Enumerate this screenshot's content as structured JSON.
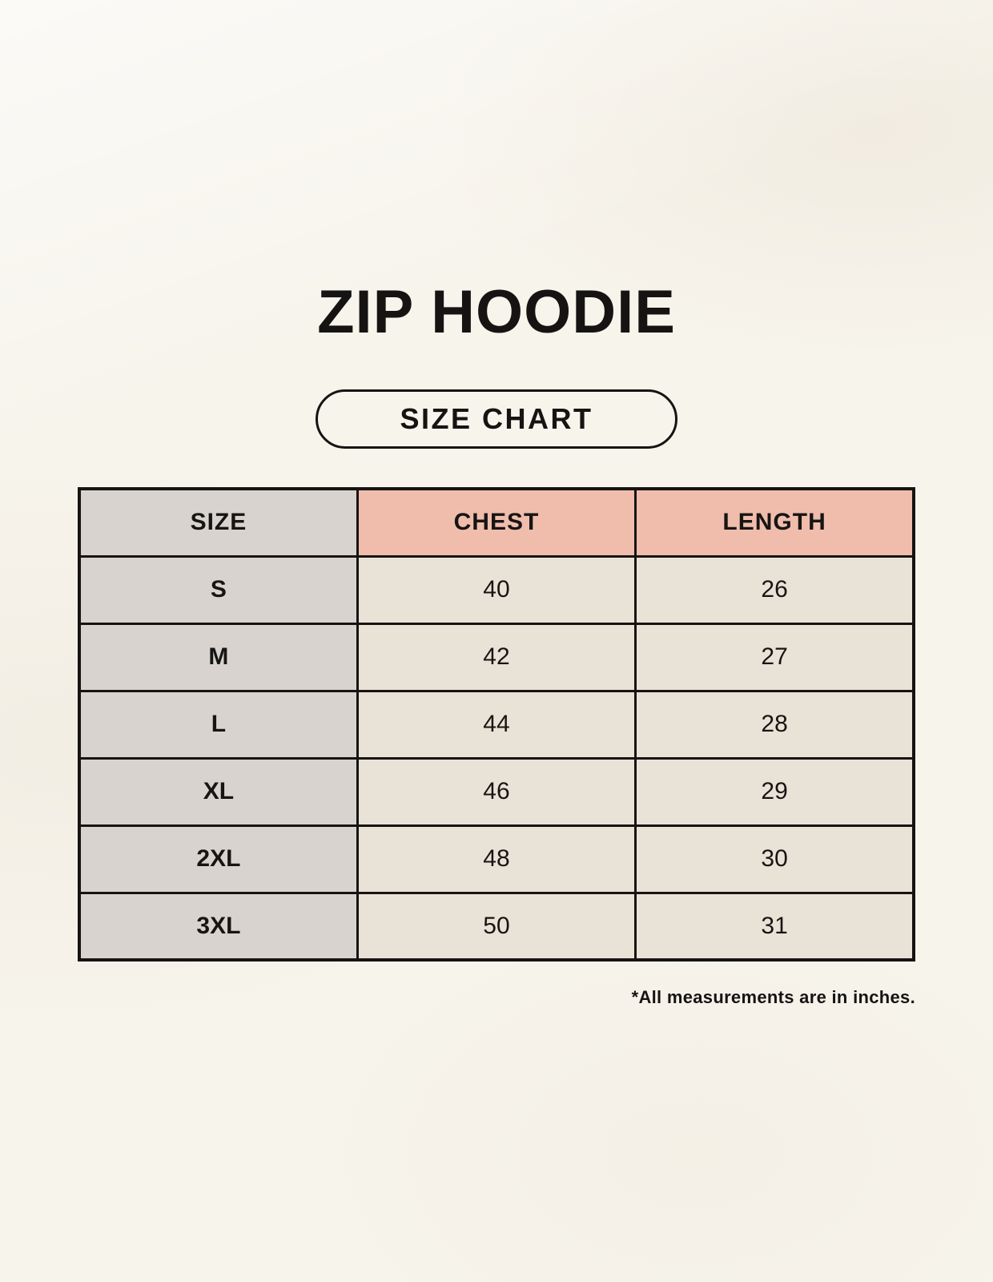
{
  "page": {
    "title": "ZIP HOODIE",
    "badge_label": "SIZE CHART",
    "footnote": "*All measurements are in inches."
  },
  "chart_data": {
    "type": "table",
    "title": "ZIP HOODIE size chart",
    "columns": [
      "SIZE",
      "CHEST",
      "LENGTH"
    ],
    "rows": [
      [
        "S",
        "40",
        "26"
      ],
      [
        "M",
        "42",
        "27"
      ],
      [
        "L",
        "44",
        "28"
      ],
      [
        "XL",
        "46",
        "29"
      ],
      [
        "2XL",
        "48",
        "30"
      ],
      [
        "3XL",
        "50",
        "31"
      ]
    ],
    "units": "inches"
  },
  "colors": {
    "background": "#f7f4ec",
    "size_column": "#d8d3cf",
    "header_accent": "#f0bdad",
    "data_cell": "#e9e2d6",
    "border": "#161412",
    "text": "#161412"
  }
}
